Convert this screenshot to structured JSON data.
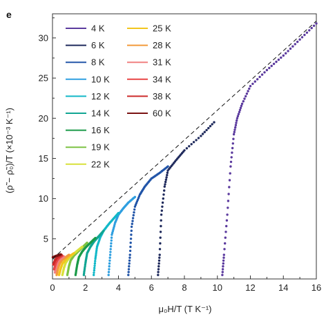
{
  "panel_letter": "e",
  "chart_data": {
    "type": "scatter",
    "title": "",
    "xlabel": "μ₀H/T (T K⁻¹)",
    "ylabel": "(ρ̃ − ρ̃₀)/T (×10⁻³ K⁻¹)",
    "xlim": [
      0,
      16
    ],
    "ylim": [
      0,
      33
    ],
    "x_ticks": [
      "0",
      "2",
      "4",
      "6",
      "8",
      "10",
      "12",
      "14",
      "16"
    ],
    "y_ticks": [
      "5",
      "10",
      "15",
      "20",
      "25",
      "30"
    ],
    "grid": false,
    "legend_position": "top-left",
    "fit_line": {
      "style": "dashed",
      "x": [
        0,
        16
      ],
      "y": [
        2.5,
        32.1
      ]
    },
    "series": [
      {
        "name": "4 K",
        "color": "#5b3a9e",
        "x": [
          10.3,
          10.4,
          10.6,
          10.8,
          11.0,
          11.2,
          11.5,
          12.0,
          13.0,
          14.0,
          15.0,
          16.0
        ],
        "y": [
          0.5,
          3.0,
          8.0,
          14.0,
          18.0,
          20.0,
          21.8,
          24.0,
          26.0,
          27.8,
          29.8,
          31.8
        ]
      },
      {
        "name": "6 K",
        "color": "#1f2a5c",
        "x": [
          6.4,
          6.5,
          6.6,
          6.8,
          7.0,
          7.5,
          8.0,
          9.0,
          9.8
        ],
        "y": [
          0.5,
          3.0,
          8.0,
          11.5,
          13.5,
          14.8,
          16.0,
          17.8,
          19.5
        ]
      },
      {
        "name": "8 K",
        "color": "#2255a8",
        "x": [
          4.6,
          4.7,
          4.8,
          5.0,
          5.3,
          5.6,
          6.0,
          6.5,
          7.0
        ],
        "y": [
          0.5,
          3.0,
          6.5,
          9.0,
          10.5,
          11.5,
          12.5,
          13.2,
          14.0
        ]
      },
      {
        "name": "10 K",
        "color": "#2f9fe0",
        "x": [
          3.4,
          3.5,
          3.6,
          3.8,
          4.0,
          4.3,
          4.6,
          5.0
        ],
        "y": [
          0.5,
          3.0,
          5.5,
          7.0,
          8.0,
          8.8,
          9.5,
          10.2
        ]
      },
      {
        "name": "12 K",
        "color": "#12b8c8",
        "x": [
          2.5,
          2.6,
          2.7,
          2.9,
          3.1,
          3.4,
          3.7,
          4.0
        ],
        "y": [
          0.5,
          2.5,
          4.0,
          5.2,
          6.0,
          6.8,
          7.5,
          8.2
        ]
      },
      {
        "name": "14 K",
        "color": "#11a593",
        "x": [
          1.9,
          2.0,
          2.1,
          2.3,
          2.5,
          2.8,
          3.1
        ],
        "y": [
          0.5,
          2.0,
          3.2,
          4.0,
          4.6,
          5.3,
          6.0
        ]
      },
      {
        "name": "16 K",
        "color": "#1a9a48",
        "x": [
          1.4,
          1.5,
          1.6,
          1.8,
          2.0,
          2.3,
          2.6
        ],
        "y": [
          0.5,
          1.8,
          2.7,
          3.4,
          3.9,
          4.5,
          5.1
        ]
      },
      {
        "name": "19 K",
        "color": "#7cc242",
        "x": [
          0.9,
          1.0,
          1.1,
          1.3,
          1.5,
          1.8,
          2.1
        ],
        "y": [
          0.5,
          1.6,
          2.3,
          2.9,
          3.3,
          3.9,
          4.5
        ]
      },
      {
        "name": "22 K",
        "color": "#d8e03a",
        "x": [
          0.6,
          0.7,
          0.8,
          1.0,
          1.2,
          1.5,
          1.8
        ],
        "y": [
          0.5,
          1.4,
          2.0,
          2.6,
          3.0,
          3.5,
          4.0
        ]
      },
      {
        "name": "25 K",
        "color": "#f2c51c",
        "x": [
          0.4,
          0.5,
          0.6,
          0.8,
          1.0,
          1.3
        ],
        "y": [
          0.5,
          1.3,
          1.9,
          2.4,
          2.8,
          3.2
        ]
      },
      {
        "name": "28 K",
        "color": "#f29a3a",
        "x": [
          0.25,
          0.35,
          0.45,
          0.6,
          0.8,
          1.0
        ],
        "y": [
          0.5,
          1.4,
          2.0,
          2.4,
          2.7,
          3.0
        ]
      },
      {
        "name": "31 K",
        "color": "#f08080",
        "x": [
          0.15,
          0.25,
          0.35,
          0.5,
          0.7
        ],
        "y": [
          0.8,
          1.7,
          2.2,
          2.5,
          2.8
        ]
      },
      {
        "name": "34 K",
        "color": "#e84545",
        "x": [
          0.1,
          0.2,
          0.3,
          0.45,
          0.6
        ],
        "y": [
          1.2,
          2.0,
          2.4,
          2.7,
          2.9
        ]
      },
      {
        "name": "38 K",
        "color": "#cc2a2a",
        "x": [
          0.05,
          0.15,
          0.25,
          0.4,
          0.55
        ],
        "y": [
          1.8,
          2.3,
          2.6,
          2.8,
          3.0
        ]
      },
      {
        "name": "60 K",
        "color": "#7a1212",
        "x": [
          0.02,
          0.1,
          0.2,
          0.35,
          0.5
        ],
        "y": [
          2.7,
          2.75,
          2.85,
          2.95,
          3.05
        ]
      }
    ]
  }
}
